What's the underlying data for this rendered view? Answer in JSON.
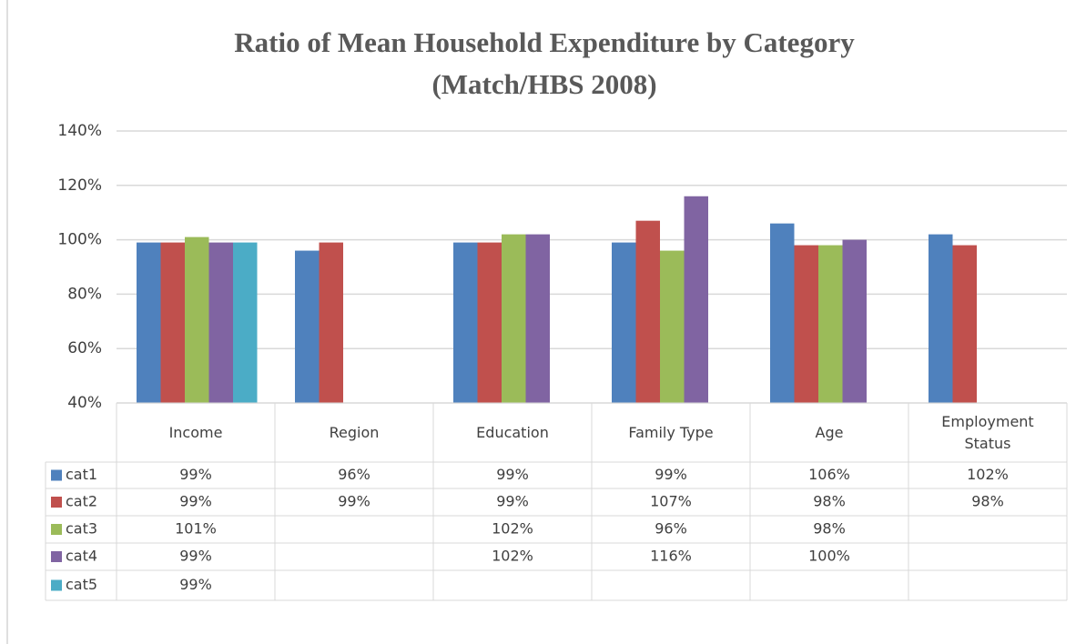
{
  "chart_data": {
    "type": "bar",
    "title": "Ratio of Mean Household Expenditure by Category",
    "subtitle": "(Match/HBS 2008)",
    "categories": [
      "Income",
      "Region",
      "Education",
      "Family Type",
      "Age",
      "Employment Status"
    ],
    "series": [
      {
        "name": "cat1",
        "color": "#4f81bd",
        "values": [
          99,
          96,
          99,
          99,
          106,
          102
        ],
        "value_labels": [
          "99%",
          "96%",
          "99%",
          "99%",
          "106%",
          "102%"
        ]
      },
      {
        "name": "cat2",
        "color": "#c0504d",
        "values": [
          99,
          99,
          99,
          107,
          98,
          98
        ],
        "value_labels": [
          "99%",
          "99%",
          "99%",
          "107%",
          "98%",
          "98%"
        ]
      },
      {
        "name": "cat3",
        "color": "#9bbb59",
        "values": [
          101,
          null,
          102,
          96,
          98,
          null
        ],
        "value_labels": [
          "101%",
          null,
          "102%",
          "96%",
          "98%",
          null
        ]
      },
      {
        "name": "cat4",
        "color": "#8064a2",
        "values": [
          99,
          null,
          102,
          116,
          100,
          null
        ],
        "value_labels": [
          "99%",
          null,
          "102%",
          "116%",
          "100%",
          null
        ]
      },
      {
        "name": "cat5",
        "color": "#4bacc6",
        "values": [
          99,
          null,
          null,
          null,
          null,
          null
        ],
        "value_labels": [
          "99%",
          null,
          null,
          null,
          null,
          null
        ]
      }
    ],
    "ylim": [
      40,
      140
    ],
    "yticks": [
      {
        "value": 40,
        "label": "40%"
      },
      {
        "value": 60,
        "label": "60%"
      },
      {
        "value": 80,
        "label": "80%"
      },
      {
        "value": 100,
        "label": "100%"
      },
      {
        "value": 120,
        "label": "120%"
      },
      {
        "value": 140,
        "label": "140%"
      }
    ],
    "grid": true,
    "legend": "table"
  }
}
